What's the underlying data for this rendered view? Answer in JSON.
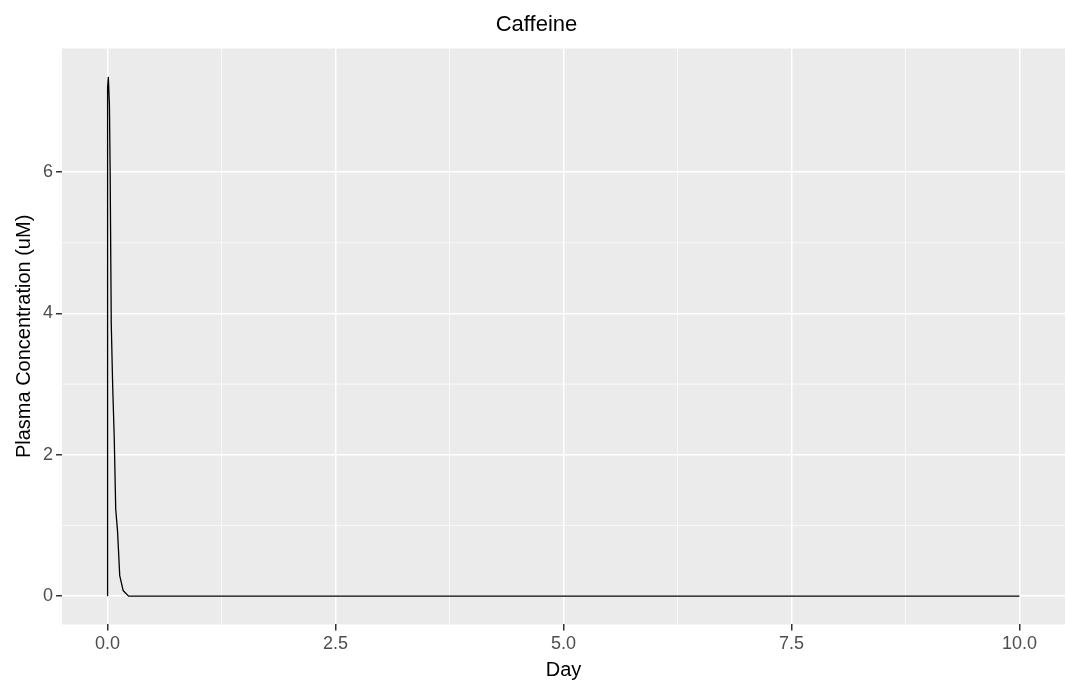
{
  "chart_data": {
    "type": "line",
    "title": "Caffeine",
    "xlabel": "Day",
    "ylabel": "Plasma Concentration (uM)",
    "series": [
      {
        "color": "#000000",
        "x": [
          0,
          0,
          0.008,
          0.02,
          0.028,
          0.04,
          0.056,
          0.073,
          0.089,
          0.109,
          0.133,
          0.17,
          0.23,
          10
        ],
        "values": [
          0,
          7.2,
          7.34,
          6.95,
          6.0,
          3.86,
          2.96,
          2.23,
          1.23,
          0.92,
          0.29,
          0.08,
          0,
          0
        ]
      }
    ],
    "xlim": [
      -0.5,
      10.5
    ],
    "xticks": [
      {
        "value": 0,
        "label": "0.0"
      },
      2.5,
      {
        "value": 5,
        "label": "5.0"
      },
      7.5,
      {
        "value": 10,
        "label": "10.0"
      }
    ],
    "ylim": [
      -0.4,
      7.75
    ],
    "yticks": [
      0,
      2,
      4,
      6
    ],
    "grid": true,
    "marker": "none",
    "line_style": "solid",
    "legend": false
  }
}
